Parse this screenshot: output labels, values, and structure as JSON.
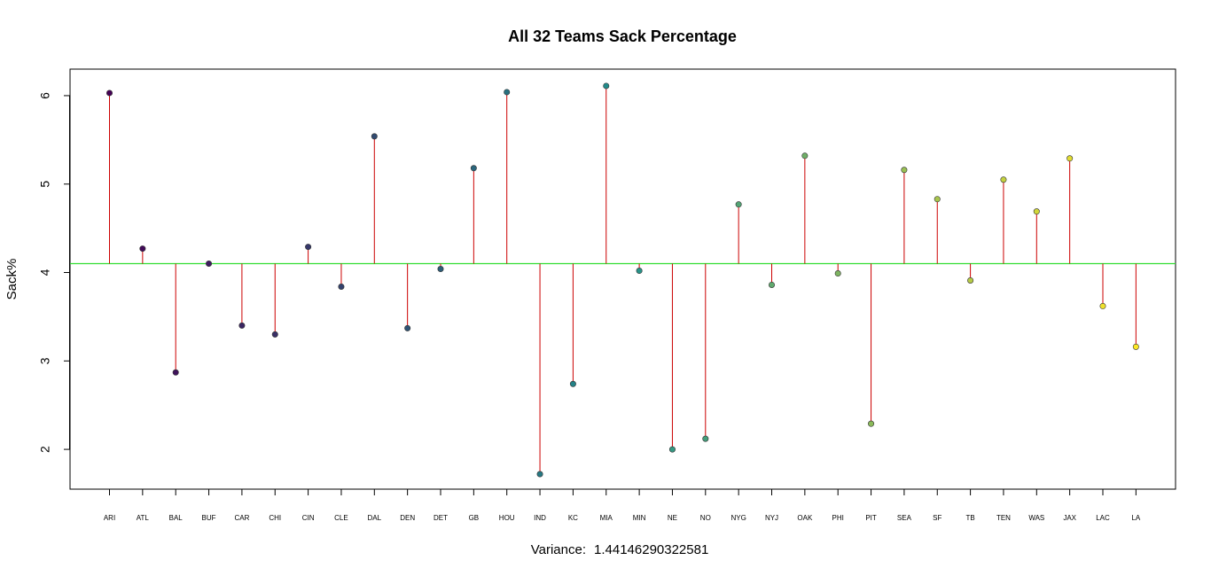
{
  "chart_data": {
    "type": "scatter",
    "title": "All 32 Teams Sack Percentage",
    "xlabel": "",
    "ylabel": "Sack%",
    "subtitle_label": "Variance:",
    "subtitle_value": "1.44146290322581",
    "reference_line": 4.1,
    "ylim": [
      1.55,
      6.3
    ],
    "yticks": [
      2,
      3,
      4,
      5,
      6
    ],
    "grid": false,
    "legend": "none",
    "colors": {
      "stem": "#cc0000",
      "reference_line": "#33dd33",
      "palette_start": "#440154",
      "palette_mid": "#21908c",
      "palette_end": "#fde725"
    },
    "categories": [
      "ARI",
      "ATL",
      "BAL",
      "BUF",
      "CAR",
      "CHI",
      "CIN",
      "CLE",
      "DAL",
      "DEN",
      "DET",
      "GB",
      "HOU",
      "IND",
      "KC",
      "MIA",
      "MIN",
      "NE",
      "NO",
      "NYG",
      "NYJ",
      "OAK",
      "PHI",
      "PIT",
      "SEA",
      "SF",
      "TB",
      "TEN",
      "WAS",
      "JAX",
      "LAC",
      "LA"
    ],
    "values": [
      6.03,
      4.27,
      2.87,
      4.1,
      3.4,
      3.3,
      4.29,
      3.84,
      5.54,
      3.37,
      4.04,
      5.18,
      6.04,
      1.72,
      2.74,
      6.11,
      4.02,
      2.0,
      2.12,
      4.77,
      3.86,
      5.32,
      3.99,
      2.29,
      5.16,
      4.83,
      3.91,
      5.05,
      4.69,
      5.29,
      3.62,
      3.16
    ]
  }
}
